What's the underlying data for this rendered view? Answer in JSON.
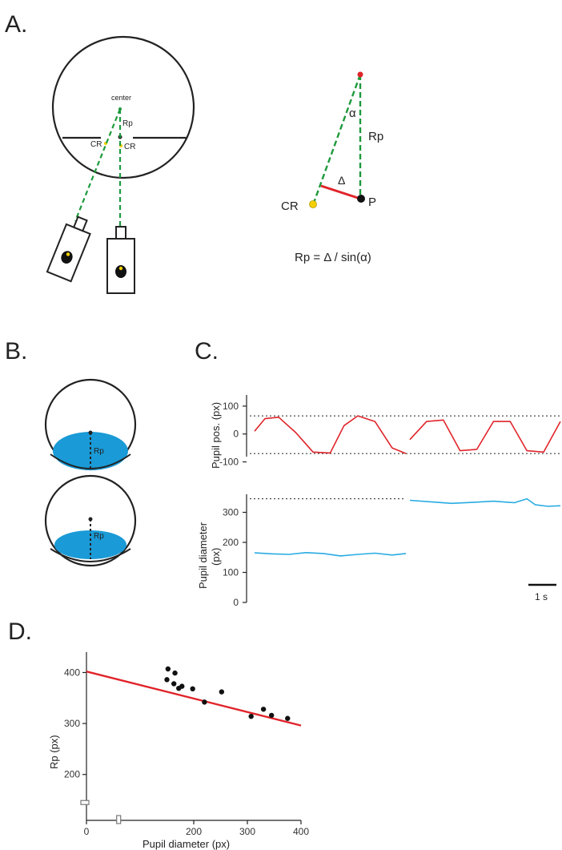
{
  "panels": {
    "a": {
      "letter": "A.",
      "label_center": "center",
      "label_rp_small": "Rp",
      "label_cr_left": "CR",
      "label_cr_right": "CR",
      "label_alpha": "α",
      "label_rp": "Rp",
      "label_delta": "Δ",
      "label_cr": "CR",
      "label_p": "P",
      "formula": "Rp = Δ / sin(α)"
    },
    "b": {
      "letter": "B.",
      "label_rp_top": "Rp",
      "label_rp_bottom": "Rp"
    },
    "c": {
      "letter": "C.",
      "top_ylabel": "Pupil pos. (px)",
      "top_ticks": [
        "100",
        "0",
        "-100"
      ],
      "bottom_ylabel_line1": "Pupil diameter",
      "bottom_ylabel_line2": "(px)",
      "bottom_ticks": [
        "300",
        "200",
        "100",
        "0"
      ],
      "scalebar_label": "1 s"
    },
    "d": {
      "letter": "D.",
      "xlabel": "Pupil diameter (px)",
      "ylabel": "Rp (px)",
      "xticks": [
        "0",
        "200",
        "300",
        "400"
      ],
      "yticks": [
        "400",
        "300",
        "200"
      ]
    }
  },
  "colors": {
    "trace_red": "#e0242a",
    "trace_blue": "#29abe2",
    "pupil_blue": "#1a9ad6",
    "dash_green": "#1e9a3c",
    "cr_yellow": "#f5d000",
    "fit_red": "#e0242a"
  },
  "chart_data": [
    {
      "type": "line",
      "panel": "C-top",
      "ylabel": "Pupil pos. (px)",
      "ylim": [
        -110,
        140
      ],
      "yticks": [
        100,
        0,
        -100
      ],
      "reference_lines": [
        65,
        -70
      ],
      "segments": [
        {
          "x": [
            0,
            0.3,
            0.7,
            1.2,
            1.7,
            2.2,
            2.6,
            3.0,
            3.5,
            4.0,
            4.4
          ],
          "y": [
            10,
            55,
            60,
            5,
            -65,
            -68,
            30,
            65,
            45,
            -50,
            -70
          ]
        },
        {
          "x": [
            0,
            0.4,
            0.8,
            1.2,
            1.6,
            2.0,
            2.4,
            2.8,
            3.2,
            3.6
          ],
          "y": [
            -20,
            45,
            50,
            -60,
            -55,
            45,
            45,
            -60,
            -65,
            45
          ]
        }
      ]
    },
    {
      "type": "line",
      "panel": "C-bottom",
      "ylabel": "Pupil diameter (px)",
      "ylim": [
        0,
        360
      ],
      "yticks": [
        300,
        200,
        100,
        0
      ],
      "reference_lines": [
        345
      ],
      "segments": [
        {
          "x": [
            0,
            0.5,
            1.0,
            1.5,
            2.0,
            2.5,
            3.0,
            3.5,
            4.0,
            4.4
          ],
          "y": [
            165,
            162,
            160,
            166,
            163,
            155,
            160,
            164,
            158,
            163
          ]
        },
        {
          "x": [
            0,
            0.5,
            1.0,
            1.5,
            2.0,
            2.5,
            2.8,
            3.0,
            3.3,
            3.6
          ],
          "y": [
            340,
            335,
            330,
            333,
            337,
            332,
            345,
            325,
            320,
            322
          ]
        }
      ],
      "scalebar": "1 s"
    },
    {
      "type": "scatter",
      "panel": "D",
      "xlabel": "Pupil diameter (px)",
      "ylabel": "Rp (px)",
      "xlim": [
        0,
        400
      ],
      "ylim": [
        110,
        440
      ],
      "xticks": [
        0,
        200,
        300,
        400
      ],
      "yticks": [
        400,
        300,
        200
      ],
      "points": [
        {
          "x": 150,
          "y": 386
        },
        {
          "x": 152,
          "y": 407
        },
        {
          "x": 163,
          "y": 378
        },
        {
          "x": 165,
          "y": 399
        },
        {
          "x": 172,
          "y": 369
        },
        {
          "x": 178,
          "y": 373
        },
        {
          "x": 198,
          "y": 368
        },
        {
          "x": 220,
          "y": 342
        },
        {
          "x": 252,
          "y": 362
        },
        {
          "x": 307,
          "y": 314
        },
        {
          "x": 330,
          "y": 328
        },
        {
          "x": 345,
          "y": 316
        },
        {
          "x": 375,
          "y": 310
        }
      ],
      "fit": {
        "x": [
          0,
          400
        ],
        "y": [
          402,
          296
        ]
      },
      "marginal_markers": {
        "x": 60,
        "y": 145
      }
    }
  ]
}
